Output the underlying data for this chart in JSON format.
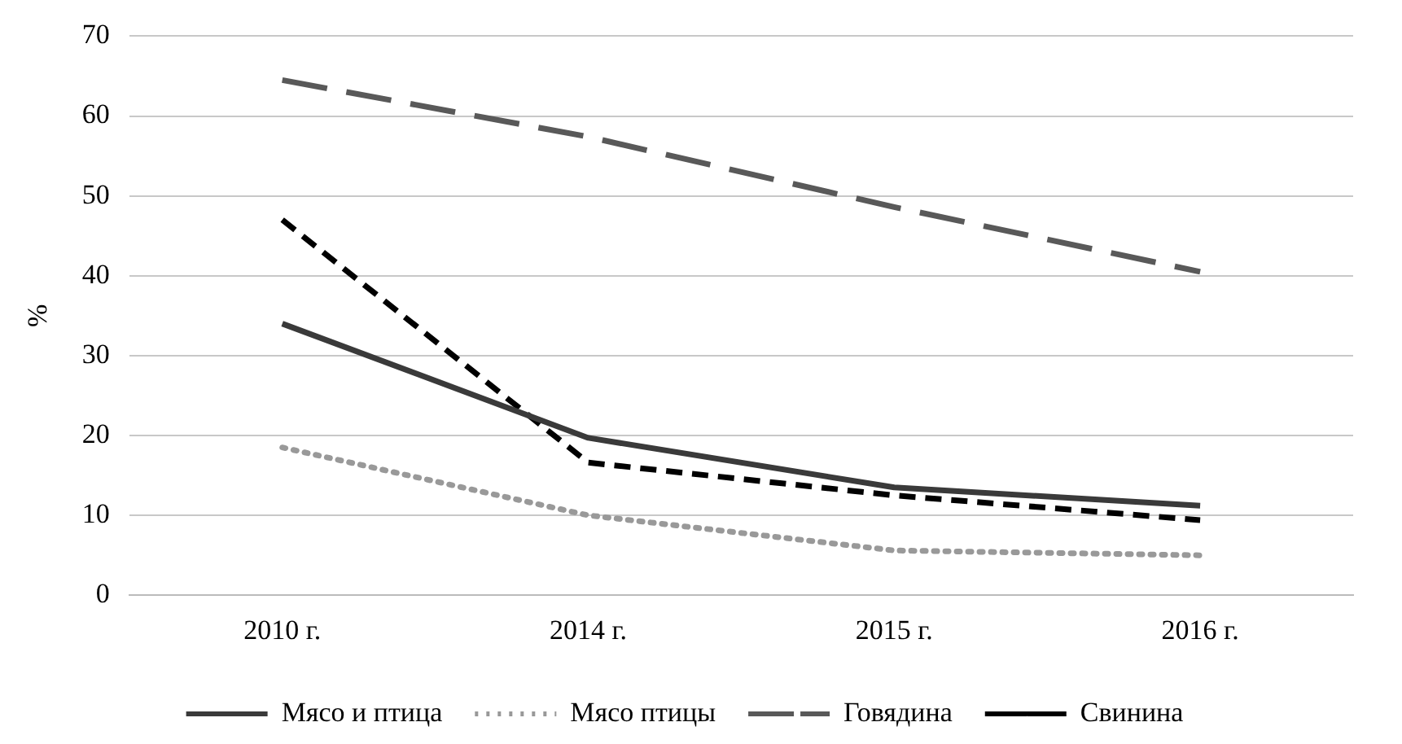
{
  "chart_data": {
    "type": "line",
    "ylabel": "%",
    "categories": [
      "2010 г.",
      "2014 г.",
      "2015 г.",
      "2016 г."
    ],
    "series": [
      {
        "name": "Мясо и птица",
        "color": "#3a3a3a",
        "line_style": "solid",
        "values": [
          34,
          19.7,
          13.5,
          11.2
        ]
      },
      {
        "name": "Мясо птицы",
        "color": "#999999",
        "line_style": "dotted",
        "values": [
          18.5,
          10,
          5.6,
          5
        ]
      },
      {
        "name": "Говядина",
        "color": "#595959",
        "line_style": "dashed",
        "values": [
          64.5,
          57.4,
          48.6,
          40.5
        ]
      },
      {
        "name": "Свинина",
        "color": "#000000",
        "line_style": "dashed",
        "values": [
          47,
          16.6,
          12.5,
          9.4
        ]
      }
    ],
    "ylim": [
      0,
      70
    ],
    "yticks": [
      0,
      10,
      20,
      30,
      40,
      50,
      60,
      70
    ],
    "grid": "y",
    "legend": "bottom",
    "marker": "none"
  }
}
